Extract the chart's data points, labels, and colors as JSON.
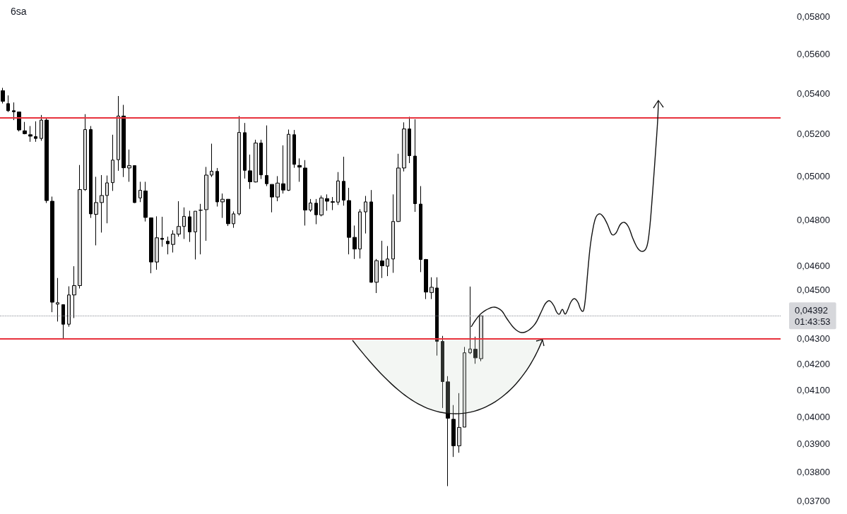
{
  "chart_data": {
    "type": "candlestick",
    "title": "6sa",
    "categories": [
      null,
      null,
      null,
      null,
      null,
      null,
      null,
      null,
      null,
      null,
      null,
      null,
      null,
      null,
      null,
      null,
      null,
      null,
      null,
      null,
      null,
      null,
      null,
      null,
      null,
      null,
      null,
      null,
      null,
      null,
      null,
      null,
      null,
      null,
      null,
      null,
      null,
      null,
      null,
      null,
      null,
      null,
      null,
      null,
      null,
      null,
      null,
      null,
      null,
      null,
      null,
      null,
      null,
      null,
      null,
      null,
      null,
      null,
      null,
      null,
      null,
      null,
      null,
      null,
      null,
      null,
      null,
      null,
      null,
      null,
      null,
      null,
      null,
      null,
      null,
      null,
      null,
      null,
      null,
      null,
      null,
      null,
      null,
      null,
      null,
      null,
      null,
      null,
      null,
      null,
      null,
      null,
      null,
      null,
      null,
      null,
      null,
      null,
      null,
      null,
      null,
      null,
      null,
      null,
      null,
      null,
      null,
      null,
      null,
      null,
      null,
      null,
      null,
      null,
      null,
      null,
      null,
      null,
      null,
      null,
      null,
      null,
      null,
      null,
      null,
      null,
      null,
      null,
      null,
      null,
      null,
      null,
      null,
      null,
      null,
      null,
      null,
      null,
      null,
      null,
      null,
      null
    ],
    "ohlc": [
      [
        0.05413,
        0.05427,
        0.05349,
        0.0536
      ],
      [
        0.05348,
        0.05389,
        0.05307,
        0.05313
      ],
      [
        0.05313,
        0.05354,
        0.05267,
        0.05308
      ],
      [
        0.05307,
        0.05307,
        0.05212,
        0.05219
      ],
      [
        0.05215,
        0.05258,
        0.05198,
        0.05201
      ],
      [
        0.05196,
        0.05238,
        0.05162,
        0.05189
      ],
      [
        0.05187,
        0.05261,
        0.05162,
        0.05178
      ],
      [
        0.05178,
        0.05292,
        0.05167,
        0.05267
      ],
      [
        0.05267,
        0.05279,
        0.04877,
        0.04888
      ],
      [
        0.04885,
        0.04906,
        0.04407,
        0.04448
      ],
      [
        0.0444,
        0.04549,
        0.04369,
        0.04446
      ],
      [
        0.04438,
        0.04438,
        0.043,
        0.04358
      ],
      [
        0.04358,
        0.04514,
        0.04348,
        0.04478
      ],
      [
        0.04478,
        0.04599,
        0.04383,
        0.04517
      ],
      [
        0.04517,
        0.05052,
        0.04505,
        0.04938
      ],
      [
        0.04938,
        0.05296,
        0.04932,
        0.05221
      ],
      [
        0.05221,
        0.05238,
        0.0481,
        0.04828
      ],
      [
        0.04826,
        0.04997,
        0.04689,
        0.04879
      ],
      [
        0.04879,
        0.05005,
        0.04745,
        0.04911
      ],
      [
        0.04911,
        0.05003,
        0.04786,
        0.04969
      ],
      [
        0.0497,
        0.05196,
        0.04932,
        0.05075
      ],
      [
        0.05077,
        0.05386,
        0.05025,
        0.05287
      ],
      [
        0.05287,
        0.05342,
        0.04996,
        0.05039
      ],
      [
        0.05038,
        0.05125,
        0.04974,
        0.05049
      ],
      [
        0.05049,
        0.05049,
        0.04877,
        0.04879
      ],
      [
        0.049,
        0.04974,
        0.04881,
        0.04935
      ],
      [
        0.04932,
        0.04974,
        0.04794,
        0.04812
      ],
      [
        0.0481,
        0.0481,
        0.04569,
        0.04617
      ],
      [
        0.04617,
        0.04817,
        0.04584,
        0.04722
      ],
      [
        0.0472,
        0.04815,
        0.04683,
        0.04715
      ],
      [
        0.04707,
        0.04727,
        0.0465,
        0.04696
      ],
      [
        0.04693,
        0.04755,
        0.04658,
        0.04738
      ],
      [
        0.04738,
        0.04885,
        0.04727,
        0.04772
      ],
      [
        0.04772,
        0.04857,
        0.04717,
        0.04817
      ],
      [
        0.04815,
        0.04842,
        0.04704,
        0.04748
      ],
      [
        0.04748,
        0.0484,
        0.04628,
        0.0484
      ],
      [
        0.04844,
        0.04873,
        0.0465,
        0.04845
      ],
      [
        0.04847,
        0.05043,
        0.04709,
        0.05005
      ],
      [
        0.05005,
        0.05153,
        0.04996,
        0.05023
      ],
      [
        0.05022,
        0.05038,
        0.04861,
        0.04882
      ],
      [
        0.04882,
        0.0492,
        0.0481,
        0.04894
      ],
      [
        0.04894,
        0.04894,
        0.04774,
        0.04784
      ],
      [
        0.04784,
        0.04839,
        0.04766,
        0.04828
      ],
      [
        0.04828,
        0.05287,
        0.04821,
        0.05207
      ],
      [
        0.05206,
        0.05253,
        0.04989,
        0.05027
      ],
      [
        0.05025,
        0.05101,
        0.04941,
        0.04974
      ],
      [
        0.04973,
        0.05172,
        0.04971,
        0.05156
      ],
      [
        0.05156,
        0.05172,
        0.04987,
        0.05006
      ],
      [
        0.05003,
        0.05241,
        0.04954,
        0.04965
      ],
      [
        0.04962,
        0.04962,
        0.04835,
        0.04904
      ],
      [
        0.04904,
        0.05,
        0.04885,
        0.04968
      ],
      [
        0.04965,
        0.05145,
        0.0492,
        0.04936
      ],
      [
        0.04935,
        0.05221,
        0.04932,
        0.05198
      ],
      [
        0.05196,
        0.05219,
        0.05039,
        0.05055
      ],
      [
        0.0505,
        0.05083,
        0.04974,
        0.05042
      ],
      [
        0.05038,
        0.05075,
        0.04776,
        0.04845
      ],
      [
        0.04845,
        0.04895,
        0.04837,
        0.04877
      ],
      [
        0.04876,
        0.04895,
        0.04782,
        0.04824
      ],
      [
        0.04823,
        0.04911,
        0.04817,
        0.049
      ],
      [
        0.04897,
        0.04916,
        0.04842,
        0.04885
      ],
      [
        0.04883,
        0.04904,
        0.04845,
        0.0488
      ],
      [
        0.04881,
        0.05019,
        0.04868,
        0.04978
      ],
      [
        0.04976,
        0.05091,
        0.04865,
        0.0489
      ],
      [
        0.04888,
        0.04946,
        0.0465,
        0.04724
      ],
      [
        0.04724,
        0.04776,
        0.0463,
        0.04673
      ],
      [
        0.04673,
        0.04849,
        0.04632,
        0.04837
      ],
      [
        0.04837,
        0.04909,
        0.04741,
        0.04882
      ],
      [
        0.04882,
        0.04936,
        0.04529,
        0.04531
      ],
      [
        0.04531,
        0.0463,
        0.04486,
        0.04623
      ],
      [
        0.04622,
        0.04709,
        0.04549,
        0.04601
      ],
      [
        0.04599,
        0.04686,
        0.04557,
        0.0463
      ],
      [
        0.0463,
        0.04916,
        0.04571,
        0.04794
      ],
      [
        0.04794,
        0.05105,
        0.04792,
        0.05038
      ],
      [
        0.05038,
        0.05256,
        0.05022,
        0.05224
      ],
      [
        0.05224,
        0.05283,
        0.05061,
        0.05096
      ],
      [
        0.05094,
        0.05271,
        0.04837,
        0.04874
      ],
      [
        0.04872,
        0.04954,
        0.04574,
        0.04628
      ],
      [
        0.04628,
        0.0463,
        0.04461,
        0.0449
      ],
      [
        0.04488,
        0.04552,
        0.04461,
        0.0451
      ],
      [
        0.04507,
        0.04552,
        0.04233,
        0.04289
      ],
      [
        0.04289,
        0.04311,
        0.04032,
        0.04132
      ],
      [
        0.04131,
        0.04153,
        0.0375,
        0.03994
      ],
      [
        0.0399,
        0.04043,
        0.03853,
        0.03893
      ],
      [
        0.03893,
        0.04088,
        0.03868,
        0.0396
      ],
      [
        0.03961,
        0.04267,
        0.03961,
        0.04244
      ],
      [
        0.04244,
        0.04513,
        0.04239,
        0.04259
      ],
      [
        0.04258,
        0.04308,
        0.04201,
        0.04224
      ],
      [
        0.04221,
        0.04392,
        0.04211,
        0.04392
      ],
      null,
      null,
      null,
      null,
      null,
      null,
      null,
      null,
      null,
      null,
      null,
      null,
      null,
      null,
      null,
      null,
      null,
      null,
      null,
      null,
      null,
      null,
      null,
      null,
      null,
      null,
      null,
      null,
      null,
      null,
      null,
      null,
      null,
      null,
      null,
      null,
      null,
      null,
      null,
      null,
      null,
      null,
      null,
      null,
      null,
      null,
      null,
      null,
      null,
      null,
      null,
      null,
      null,
      null
    ],
    "log": true,
    "ylim": [
      0.037,
      0.058
    ],
    "yticks": [
      {
        "value": 0.037,
        "label": "0,03700"
      },
      {
        "value": 0.038,
        "label": "0,03800"
      },
      {
        "value": 0.039,
        "label": "0,03900"
      },
      {
        "value": 0.04,
        "label": "0,04000"
      },
      {
        "value": 0.041,
        "label": "0,04100"
      },
      {
        "value": 0.042,
        "label": "0,04200"
      },
      {
        "value": 0.043,
        "label": "0,04300"
      },
      {
        "value": 0.045,
        "label": "0,04500"
      },
      {
        "value": 0.046,
        "label": "0,04600"
      },
      {
        "value": 0.048,
        "label": "0,04800"
      },
      {
        "value": 0.05,
        "label": "0,05000"
      },
      {
        "value": 0.052,
        "label": "0,05200"
      },
      {
        "value": 0.054,
        "label": "0,05400"
      },
      {
        "value": 0.056,
        "label": "0,05600"
      },
      {
        "value": 0.058,
        "label": "0,05800"
      }
    ],
    "tick_labels": "y",
    "ref_lines": [
      {
        "axis": "y",
        "value": 0.0528,
        "color": "#e8323c",
        "line_style": "solid"
      },
      {
        "axis": "y",
        "value": 0.043,
        "color": "#e8323c",
        "line_style": "solid"
      },
      {
        "axis": "y",
        "value": 0.04392,
        "label": "0,04392",
        "color": "#8a8d96",
        "line_style": "dotted"
      }
    ],
    "annotations": [
      "01:43:53"
    ]
  }
}
